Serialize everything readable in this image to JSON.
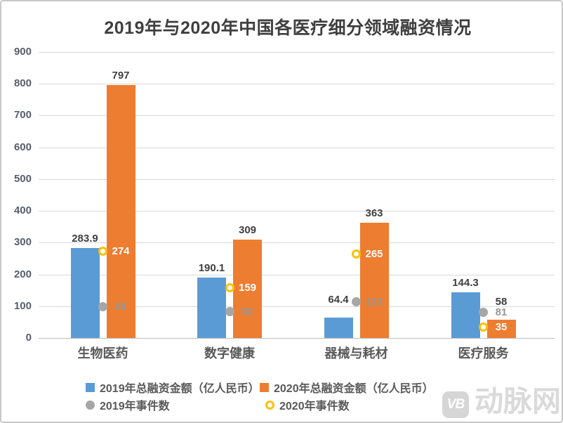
{
  "title": "2019年与2020年中国各医疗细分领域融资情况",
  "watermark": {
    "logo_text": "VB",
    "brand": "动脉网"
  },
  "chart_data": {
    "type": "bar",
    "title": "2019年与2020年中国各医疗细分领域融资情况",
    "categories": [
      "生物医药",
      "数字健康",
      "器械与耗材",
      "医疗服务"
    ],
    "series": [
      {
        "name": "2019年总融资金额（亿人民币）",
        "kind": "bar",
        "color": "#5B9BD5",
        "label_color": "#3f3f3f",
        "values": [
          283.9,
          190.1,
          64.4,
          144.3
        ]
      },
      {
        "name": "2020年总融资金额（亿人民币）",
        "kind": "bar",
        "color": "#ED7D31",
        "label_color": "#3f3f3f",
        "values": [
          797,
          309,
          363,
          58
        ]
      },
      {
        "name": "2019年事件数",
        "kind": "point",
        "color": "#A6A6A6",
        "label_color": "#969696",
        "values": [
          98,
          82,
          113,
          81
        ]
      },
      {
        "name": "2020年事件数",
        "kind": "ring",
        "color": "#FFC000",
        "label_color": "#FFFFFF",
        "values": [
          274,
          159,
          265,
          35
        ]
      }
    ],
    "ylim": [
      0,
      900
    ],
    "ytick_step": 100,
    "grid": true,
    "legend_position": "bottom"
  }
}
